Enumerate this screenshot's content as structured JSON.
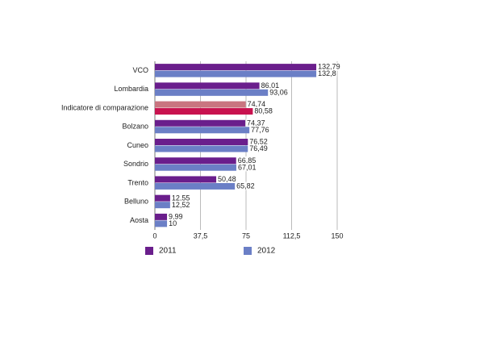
{
  "chart_data": {
    "type": "hbar",
    "categories": [
      "VCO",
      "Lombardia",
      "Indicatore di comparazione",
      "Bolzano",
      "Cuneo",
      "Sondrio",
      "Trento",
      "Belluno",
      "Aosta"
    ],
    "series": [
      {
        "name": "2011",
        "color": "#6a1e8c",
        "colors": [
          "#6a1e8c",
          "#6a1e8c",
          "#c97580",
          "#6a1e8c",
          "#6a1e8c",
          "#6a1e8c",
          "#6a1e8c",
          "#6a1e8c",
          "#6a1e8c"
        ],
        "values": [
          132.79,
          86.01,
          74.74,
          74.37,
          76.52,
          66.85,
          50.48,
          12.55,
          9.99
        ],
        "value_labels": [
          "132,79",
          "86,01",
          "74,74",
          "74,37",
          "76,52",
          "66,85",
          "50,48",
          "12,55",
          "9,99"
        ]
      },
      {
        "name": "2012",
        "color": "#6b7fc6",
        "colors": [
          "#6b7fc6",
          "#6b7fc6",
          "#c8124f",
          "#6b7fc6",
          "#6b7fc6",
          "#6b7fc6",
          "#6b7fc6",
          "#6b7fc6",
          "#6b7fc6"
        ],
        "values": [
          132.8,
          93.06,
          80.58,
          77.76,
          76.49,
          67.01,
          65.82,
          12.52,
          10
        ],
        "value_labels": [
          "132,8",
          "93,06",
          "80,58",
          "77,76",
          "76,49",
          "67,01",
          "65,82",
          "12,52",
          "10"
        ]
      }
    ],
    "xlim": [
      0,
      150
    ],
    "xticks": [
      0,
      {
        "value": 37.5,
        "label": "37,5"
      },
      75,
      {
        "value": 112.5,
        "label": "112,5"
      },
      150
    ],
    "grid": true
  }
}
